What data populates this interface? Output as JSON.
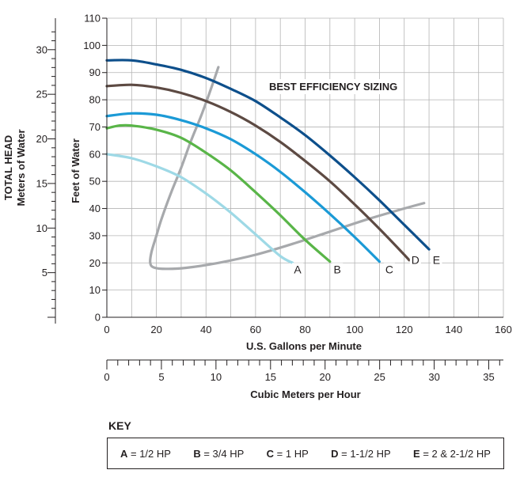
{
  "chart_data": {
    "type": "line",
    "title": "BEST EFFICIENCY SIZING",
    "xlabel": "U.S. Gallons per Minute",
    "ylabel": "Feet of Water",
    "xlim": [
      0,
      160
    ],
    "ylim": [
      0,
      110
    ],
    "x_ticks": [
      "0",
      "20",
      "40",
      "60",
      "80",
      "100",
      "120",
      "140",
      "160"
    ],
    "y_ticks": [
      "0",
      "10",
      "20",
      "30",
      "40",
      "50",
      "60",
      "70",
      "80",
      "90",
      "100",
      "110"
    ],
    "secondary_x_axis": {
      "label": "Cubic Meters per Hour",
      "ticks": [
        "0",
        "5",
        "10",
        "15",
        "20",
        "25",
        "30",
        "35"
      ],
      "range": [
        0,
        36.34
      ]
    },
    "secondary_y_axis": {
      "label_line1": "TOTAL HEAD",
      "label_line2": "Meters of Water",
      "ticks": [
        "5",
        "10",
        "15",
        "20",
        "25",
        "30"
      ],
      "range": [
        0,
        33.53
      ]
    },
    "grid": true,
    "series": [
      {
        "name": "A",
        "color": "#9ed9e6",
        "x": [
          0,
          10,
          20,
          30,
          40,
          50,
          60,
          70,
          75
        ],
        "y": [
          60,
          58.5,
          55.5,
          51.5,
          45.5,
          38.5,
          30.5,
          22.5,
          20
        ]
      },
      {
        "name": "B",
        "color": "#59b548",
        "x": [
          0,
          5,
          10,
          20,
          30,
          40,
          50,
          60,
          70,
          80,
          90
        ],
        "y": [
          69.5,
          70.5,
          70.5,
          69,
          66,
          60.5,
          54,
          46,
          37.5,
          28.5,
          20.5
        ]
      },
      {
        "name": "C",
        "color": "#1b9ad6",
        "x": [
          0,
          10,
          20,
          30,
          40,
          50,
          60,
          70,
          80,
          90,
          100,
          110
        ],
        "y": [
          74,
          75,
          74.5,
          72.5,
          69.5,
          65.5,
          60,
          53.5,
          46,
          38,
          29.5,
          20.5
        ]
      },
      {
        "name": "D",
        "color": "#5d4a43",
        "x": [
          0,
          10,
          20,
          30,
          40,
          50,
          60,
          70,
          80,
          90,
          100,
          110,
          120,
          122
        ],
        "y": [
          85,
          85.5,
          84.5,
          82.5,
          79.5,
          75.5,
          70.5,
          64.5,
          57.5,
          50,
          41.5,
          32.5,
          23,
          21
        ]
      },
      {
        "name": "E",
        "color": "#0d4f8b",
        "x": [
          0,
          10,
          20,
          30,
          40,
          50,
          60,
          70,
          80,
          90,
          100,
          110,
          120,
          130
        ],
        "y": [
          94.5,
          94.5,
          93,
          91,
          88,
          84,
          79.5,
          73.5,
          67,
          59.5,
          51.5,
          43,
          34,
          25
        ]
      }
    ],
    "efficiency_curve": {
      "color": "#a7a9ac",
      "x": [
        45,
        42,
        38,
        34,
        30,
        26,
        22,
        20,
        18,
        17.5,
        19,
        24,
        32,
        45,
        60,
        75,
        90,
        105,
        120,
        128
      ],
      "y": [
        92,
        84,
        74,
        65,
        55,
        46,
        36,
        30,
        24,
        20,
        18.3,
        17.8,
        18.2,
        20,
        23,
        27,
        31.5,
        36,
        40,
        42
      ]
    },
    "series_labels": [
      {
        "text": "A",
        "x": 77,
        "y": 16.5
      },
      {
        "text": "B",
        "x": 93,
        "y": 16.5
      },
      {
        "text": "C",
        "x": 114,
        "y": 16.5
      },
      {
        "text": "D",
        "x": 124.5,
        "y": 20
      },
      {
        "text": "E",
        "x": 133,
        "y": 20
      }
    ]
  },
  "key": {
    "title": "KEY",
    "items": [
      {
        "code": "A",
        "value": " = 1/2 HP"
      },
      {
        "code": "B",
        "value": " = 3/4 HP"
      },
      {
        "code": "C",
        "value": " = 1 HP"
      },
      {
        "code": "D",
        "value": " = 1-1/2 HP"
      },
      {
        "code": "E",
        "value": " = 2 & 2-1/2 HP"
      }
    ]
  }
}
